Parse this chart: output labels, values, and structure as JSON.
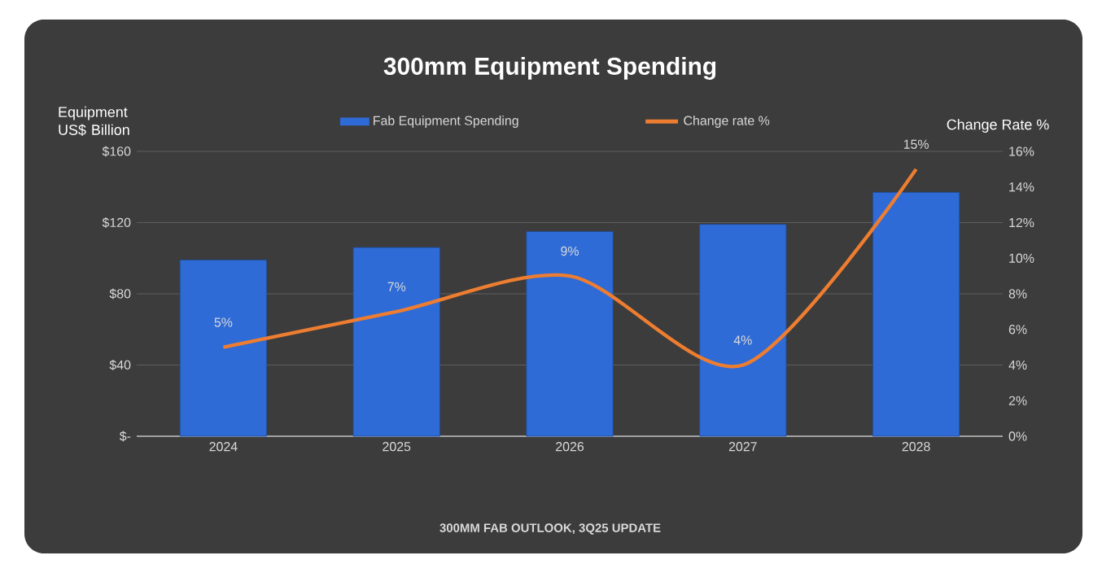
{
  "chart_data": {
    "type": "bar",
    "title": "300mm Equipment Spending",
    "ylabel": "Equipment US$ Billion",
    "y2label": "Change Rate %",
    "annotations": [
      "300MM FAB OUTLOOK, 3Q25 UPDATE"
    ],
    "categories": [
      "2024",
      "2025",
      "2026",
      "2027",
      "2028"
    ],
    "series": [
      {
        "name": "Fab Equipment Spending",
        "color": "#2e6bd6",
        "values": [
          99,
          106,
          115,
          119,
          137
        ]
      },
      {
        "name": "Change rate %",
        "type": "line",
        "axis": "y2",
        "color": "#ed7d31",
        "values": [
          5,
          7,
          9,
          4,
          15
        ],
        "value_labels": [
          "5%",
          "7%",
          "9%",
          "4%",
          "15%"
        ]
      }
    ],
    "ylim": [
      0,
      160
    ],
    "yticks": [
      {
        "value": 0,
        "label": "$-"
      },
      {
        "value": 40,
        "label": "$40"
      },
      {
        "value": 80,
        "label": "$80"
      },
      {
        "value": 120,
        "label": "$120"
      },
      {
        "value": 160,
        "label": "$160"
      }
    ],
    "y2lim": [
      0,
      16
    ],
    "y2ticks": [
      {
        "value": 0,
        "label": "0%"
      },
      {
        "value": 2,
        "label": "2%"
      },
      {
        "value": 4,
        "label": "4%"
      },
      {
        "value": 6,
        "label": "6%"
      },
      {
        "value": 8,
        "label": "8%"
      },
      {
        "value": 10,
        "label": "10%"
      },
      {
        "value": 12,
        "label": "12%"
      },
      {
        "value": 14,
        "label": "14%"
      },
      {
        "value": 16,
        "label": "16%"
      }
    ],
    "grid": "y",
    "legend": "top"
  }
}
